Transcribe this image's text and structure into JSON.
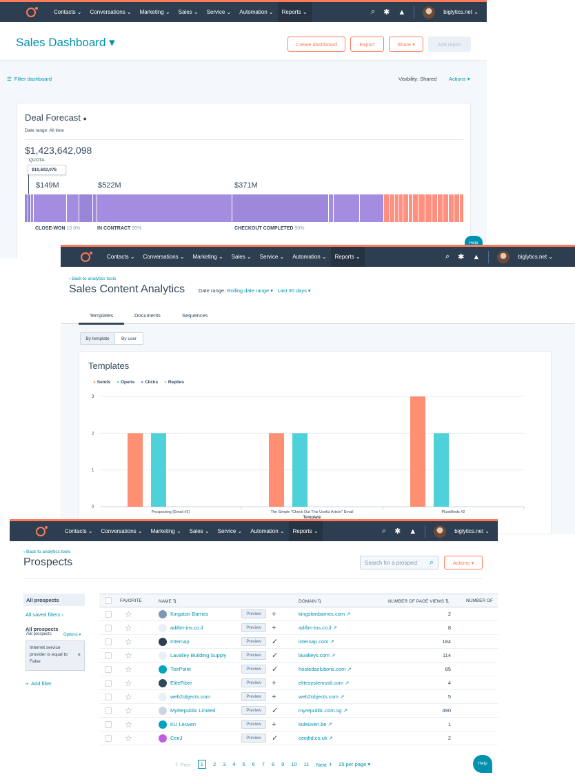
{
  "nav1": {
    "items": [
      "Contacts",
      "Conversations",
      "Marketing",
      "Sales",
      "Service",
      "Automation",
      "Reports"
    ],
    "account": "biglytics.net"
  },
  "dash": {
    "title": "Sales Dashboard",
    "create": "Create dashboard",
    "export": "Export",
    "share": "Share",
    "add_report": "Add report",
    "filter": "Filter dashboard",
    "visibility_label": "Visibility:",
    "visibility_value": "Shared",
    "actions": "Actions"
  },
  "forecast": {
    "title": "Deal Forecast",
    "date_range": "Date range: All time",
    "total": "$1,423,642,098",
    "quota_label": "QUOTA",
    "quota_value": "$10,602,076",
    "stage_values": [
      "$149M",
      "$522M",
      "$371M"
    ],
    "stages": [
      {
        "name": "CLOSE-WON",
        "pct": "10 0%"
      },
      {
        "name": "IN CONTRACT",
        "pct": "90%"
      },
      {
        "name": "CHECKOUT COMPLETED",
        "pct": "90%"
      }
    ],
    "help": "Help"
  },
  "content": {
    "back": "Back to analytics tools",
    "title": "Sales Content Analytics",
    "range_label": "Date range:",
    "range_value": "Rolling date range",
    "range_period": "Last 30 days",
    "tabs": [
      "Templates",
      "Documents",
      "Sequences"
    ],
    "toggle": [
      "By template",
      "By user"
    ],
    "card_title": "Templates"
  },
  "chart_data": {
    "type": "bar",
    "categories": [
      "Prospecting (Email #2)",
      "The Simple \"Check Out This Useful Article\" Email",
      "PlushBeds #2"
    ],
    "series": [
      {
        "name": "Sends",
        "values": [
          2,
          2,
          3
        ]
      },
      {
        "name": "Opens",
        "values": [
          2,
          2,
          2
        ]
      },
      {
        "name": "Clicks",
        "values": [
          0,
          0,
          0
        ]
      },
      {
        "name": "Replies",
        "values": [
          0,
          0,
          0
        ]
      }
    ],
    "xlabel": "Template",
    "ylabel": "",
    "ylim": [
      0,
      3
    ],
    "yticks": [
      "0",
      "1",
      "2",
      "3"
    ],
    "colors": [
      "#ff8f73",
      "#4fd1d9",
      "#8b7fd6",
      "#fea58e"
    ]
  },
  "prospects": {
    "back": "Back to analytics tools",
    "title": "Prospects",
    "search_placeholder": "Search for a prospect",
    "actions": "Actions",
    "sidebar": {
      "all": "All prospects",
      "saved": "All saved filters",
      "filter_title": "All prospects",
      "count": "758 prospects",
      "options": "Options",
      "filter_text": "Internet service provider is equal to False",
      "add_filter": "Add filter"
    },
    "headers": {
      "favorite": "FAVORITE",
      "name": "NAME",
      "domain": "DOMAIN",
      "views": "NUMBER OF PAGE VIEWS",
      "num": "NUMBER OF"
    },
    "preview": "Preview",
    "rows": [
      {
        "name": "Kingston Barnes",
        "domain": "kingstonbarnes.com",
        "views": "2",
        "act": "+"
      },
      {
        "name": "adifim-ins.co.il",
        "domain": "adifim-ins.co.il",
        "views": "8",
        "act": "+"
      },
      {
        "name": "Internap",
        "domain": "internap.com",
        "views": "184",
        "act": "✓"
      },
      {
        "name": "Lavalley Building Supply",
        "domain": "lavalleys.com",
        "views": "114",
        "act": "✓"
      },
      {
        "name": "TierPoint",
        "domain": "hostedsolutions.com",
        "views": "85",
        "act": "✓"
      },
      {
        "name": "EliteFiber",
        "domain": "elitesystemsstl.com",
        "views": "4",
        "act": "+"
      },
      {
        "name": "web2objects.com",
        "domain": "web2objects.com",
        "views": "5",
        "act": "+"
      },
      {
        "name": "MyRepublic Limited",
        "domain": "myrepublic.com.sg",
        "views": "490",
        "act": "✓"
      },
      {
        "name": "KU Leuven",
        "domain": "kuleuven.be",
        "views": "1",
        "act": "+"
      },
      {
        "name": "CeeJ",
        "domain": "ceejltd.co.uk",
        "views": "2",
        "act": "✓"
      }
    ],
    "pager": {
      "prev": "Prev",
      "pages": [
        "1",
        "2",
        "3",
        "4",
        "5",
        "6",
        "7",
        "8",
        "9",
        "10",
        "11"
      ],
      "next": "Next",
      "per_page": "25 per page"
    },
    "help": "Help"
  }
}
